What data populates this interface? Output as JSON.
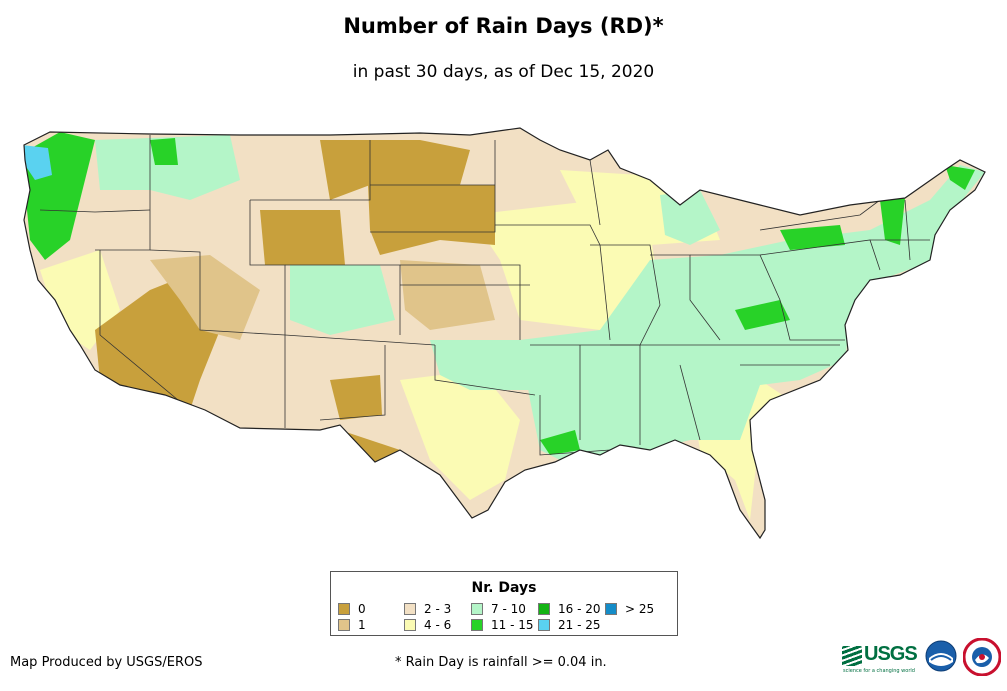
{
  "header": {
    "title": "Number of Rain Days (RD)*",
    "subtitle": "in past 30 days, as of Dec 15, 2020"
  },
  "legend": {
    "title": "Nr. Days",
    "items": [
      {
        "label": "0",
        "color": "#c8a03c"
      },
      {
        "label": "1",
        "color": "#e0c48a"
      },
      {
        "label": "2 - 3",
        "color": "#f2e0c4"
      },
      {
        "label": "4 - 6",
        "color": "#fbfbb4"
      },
      {
        "label": "7 - 10",
        "color": "#b4f5c8"
      },
      {
        "label": "11 - 15",
        "color": "#28d228"
      },
      {
        "label": "16 - 20",
        "color": "#14b414"
      },
      {
        "label": "21 - 25",
        "color": "#5ad2f0"
      },
      {
        "label": "> 25",
        "color": "#148cc8"
      }
    ]
  },
  "footer": {
    "credit": "Map Produced by USGS/EROS",
    "footnote": "* Rain Day is rainfall >= 0.04 in.",
    "usgs_logo": "USGS",
    "usgs_tagline": "science for a changing world"
  },
  "icons": [
    "usgs-logo-icon",
    "noaa-logo-icon",
    "nws-logo-icon"
  ]
}
